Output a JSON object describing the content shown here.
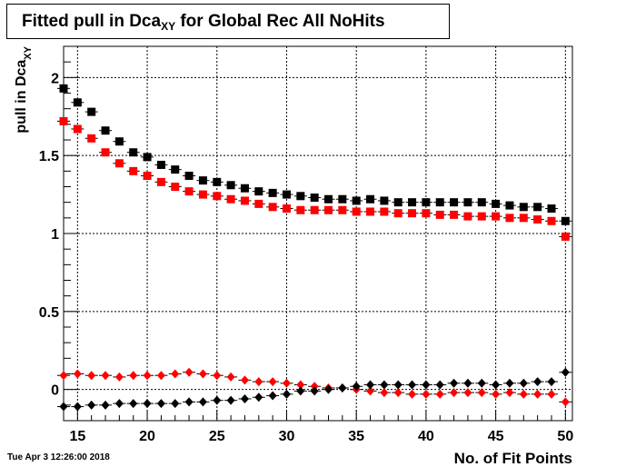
{
  "title": {
    "prefix": "Fitted pull in Dca",
    "sub": "XY",
    "suffix": " for Global Rec All NoHits"
  },
  "timestamp": "Tue Apr  3 12:26:00 2018",
  "chart_data": {
    "type": "scatter",
    "title": "Fitted pull in DcaXY for Global Rec All NoHits",
    "xlabel": "No. of Fit Points",
    "ylabel": "pull in Dca",
    "ylabel_sub": "XY",
    "xlim": [
      14,
      50.5
    ],
    "ylim": [
      -0.2,
      2.2
    ],
    "x_ticks": [
      15,
      20,
      25,
      30,
      35,
      40,
      45,
      50
    ],
    "y_ticks": [
      0,
      0.5,
      1,
      1.5,
      2
    ],
    "y_tick_labels": [
      "0",
      "0.5",
      "1",
      "1.5",
      "2"
    ],
    "grid": true,
    "legend": "none",
    "x": [
      14,
      15,
      16,
      17,
      18,
      19,
      20,
      21,
      22,
      23,
      24,
      25,
      26,
      27,
      28,
      29,
      30,
      31,
      32,
      33,
      34,
      35,
      36,
      37,
      38,
      39,
      40,
      41,
      42,
      43,
      44,
      45,
      46,
      47,
      48,
      49,
      50
    ],
    "series": [
      {
        "color": "#000000",
        "marker": "square",
        "values": [
          1.93,
          1.84,
          1.78,
          1.66,
          1.59,
          1.52,
          1.49,
          1.44,
          1.41,
          1.37,
          1.34,
          1.33,
          1.31,
          1.29,
          1.27,
          1.26,
          1.25,
          1.24,
          1.23,
          1.22,
          1.22,
          1.21,
          1.22,
          1.21,
          1.2,
          1.2,
          1.2,
          1.2,
          1.2,
          1.2,
          1.2,
          1.19,
          1.18,
          1.17,
          1.17,
          1.16,
          1.08
        ]
      },
      {
        "color": "#ff0000",
        "marker": "square",
        "values": [
          1.72,
          1.67,
          1.61,
          1.52,
          1.45,
          1.4,
          1.37,
          1.33,
          1.3,
          1.27,
          1.25,
          1.24,
          1.22,
          1.21,
          1.19,
          1.17,
          1.16,
          1.15,
          1.15,
          1.15,
          1.15,
          1.14,
          1.14,
          1.14,
          1.13,
          1.13,
          1.13,
          1.12,
          1.12,
          1.11,
          1.11,
          1.11,
          1.1,
          1.1,
          1.09,
          1.08,
          0.98
        ]
      },
      {
        "color": "#ff0000",
        "marker": "diamond",
        "values": [
          0.09,
          0.1,
          0.09,
          0.09,
          0.08,
          0.09,
          0.09,
          0.09,
          0.1,
          0.11,
          0.1,
          0.09,
          0.08,
          0.06,
          0.05,
          0.05,
          0.04,
          0.03,
          0.02,
          0.01,
          0.01,
          0.0,
          -0.01,
          -0.02,
          -0.02,
          -0.03,
          -0.03,
          -0.03,
          -0.02,
          -0.02,
          -0.02,
          -0.03,
          -0.02,
          -0.03,
          -0.03,
          -0.03,
          -0.08
        ]
      },
      {
        "color": "#000000",
        "marker": "diamond",
        "values": [
          -0.11,
          -0.11,
          -0.1,
          -0.1,
          -0.09,
          -0.09,
          -0.09,
          -0.09,
          -0.09,
          -0.08,
          -0.08,
          -0.07,
          -0.07,
          -0.06,
          -0.05,
          -0.04,
          -0.03,
          -0.01,
          -0.01,
          0.0,
          0.01,
          0.02,
          0.03,
          0.03,
          0.03,
          0.03,
          0.03,
          0.03,
          0.04,
          0.04,
          0.04,
          0.03,
          0.04,
          0.04,
          0.05,
          0.05,
          0.11
        ]
      }
    ]
  }
}
